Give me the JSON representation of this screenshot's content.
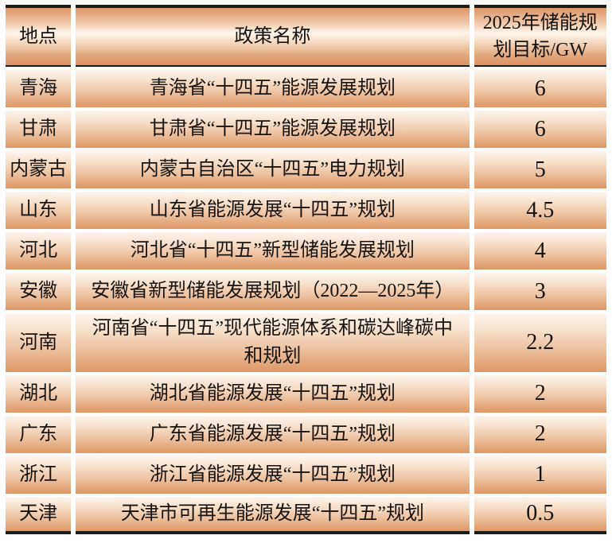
{
  "table": {
    "title_semantic": "2025年各省储能规划目标表",
    "columns": [
      {
        "label": "地点"
      },
      {
        "label": "政策名称"
      },
      {
        "label": "2025年储能规划目标/GW"
      }
    ],
    "rows": [
      {
        "location": "青海",
        "policy": "青海省“十四五”能源发展规划",
        "target": "6"
      },
      {
        "location": "甘肃",
        "policy": "甘肃省“十四五”能源发展规划",
        "target": "6"
      },
      {
        "location": "内蒙古",
        "policy": "内蒙古自治区“十四五”电力规划",
        "target": "5"
      },
      {
        "location": "山东",
        "policy": "山东省能源发展“十四五”规划",
        "target": "4.5"
      },
      {
        "location": "河北",
        "policy": "河北省“十四五”新型储能发展规划",
        "target": "4"
      },
      {
        "location": "安徽",
        "policy": "安徽省新型储能发展规划（2022—2025年）",
        "target": "3"
      },
      {
        "location": "河南",
        "policy": "河南省“十四五”现代能源体系和碳达峰碳中和规划",
        "target": "2.2"
      },
      {
        "location": "湖北",
        "policy": "湖北省能源发展“十四五”规划",
        "target": "2"
      },
      {
        "location": "广东",
        "policy": "广东省能源发展“十四五”规划",
        "target": "2"
      },
      {
        "location": "浙江",
        "policy": "浙江省能源发展“十四五”规划",
        "target": "1"
      },
      {
        "location": "天津",
        "policy": "天津市可再生能源发展“十四五”规划",
        "target": "0.5"
      }
    ],
    "colors": {
      "rule_black": "#1b1b19",
      "cell_salmon_dark": "#de9765",
      "cell_pale": "#fdf5ee",
      "gap_white": "#ffffff",
      "text": "#151412"
    }
  }
}
